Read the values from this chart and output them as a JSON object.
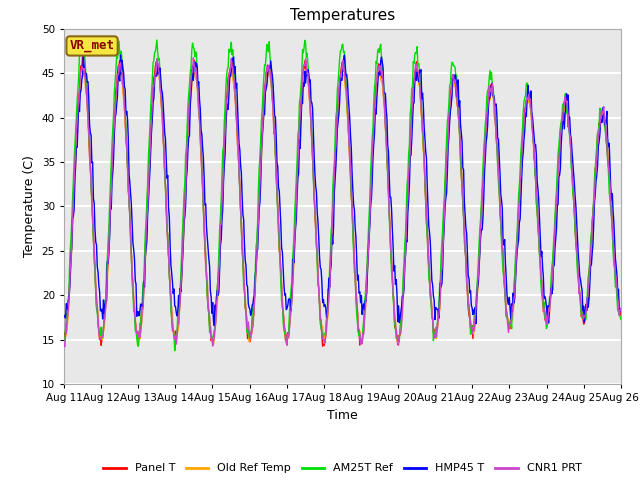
{
  "title": "Temperatures",
  "xlabel": "Time",
  "ylabel": "Temperature (C)",
  "ylim": [
    10,
    50
  ],
  "background_color": "#e8e8e8",
  "grid_color": "white",
  "annotation_text": "VR_met",
  "annotation_box_facecolor": "#f5e642",
  "annotation_box_edgecolor": "#8b6914",
  "annotation_text_color": "#8b0000",
  "legend": [
    "Panel T",
    "Old Ref Temp",
    "AM25T Ref",
    "HMP45 T",
    "CNR1 PRT"
  ],
  "line_colors": [
    "#ff0000",
    "#ffa500",
    "#00dd00",
    "#0000ff",
    "#cc44cc"
  ],
  "x_tick_labels": [
    "Aug 11",
    "Aug 12",
    "Aug 13",
    "Aug 14",
    "Aug 15",
    "Aug 16",
    "Aug 17",
    "Aug 18",
    "Aug 19",
    "Aug 20",
    "Aug 21",
    "Aug 22",
    "Aug 23",
    "Aug 24",
    "Aug 25",
    "Aug 26"
  ],
  "title_fontsize": 11,
  "axis_label_fontsize": 9,
  "tick_fontsize": 7.5,
  "legend_fontsize": 8
}
